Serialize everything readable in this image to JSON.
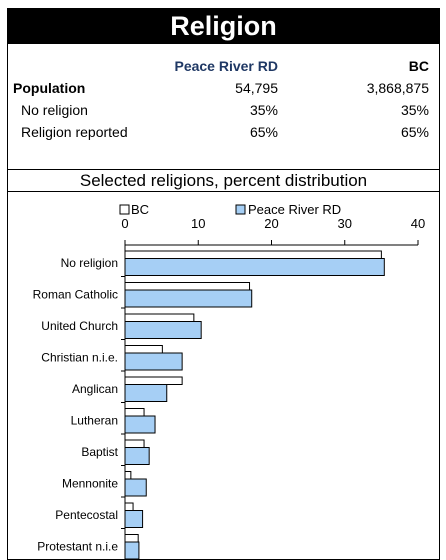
{
  "title": "Religion",
  "stats": {
    "col_region": "Peace River RD",
    "col_bc": "BC",
    "rows": [
      {
        "label": "Population",
        "region": "54,795",
        "bc": "3,868,875",
        "bold": true
      },
      {
        "label": "No religion",
        "region": "35%",
        "bc": "35%",
        "bold": false
      },
      {
        "label": "Religion reported",
        "region": "65%",
        "bc": "65%",
        "bold": false
      }
    ]
  },
  "colors": {
    "region_fill": "#a6cff5",
    "region_header": "#1f3864",
    "bc_fill": "#ffffff"
  },
  "chart_data": {
    "type": "bar",
    "orientation": "horizontal",
    "title": "Selected religions, percent distribution",
    "categories": [
      "No religion",
      "Roman Catholic",
      "United Church",
      "Christian n.i.e.",
      "Anglican",
      "Lutheran",
      "Baptist",
      "Mennonite",
      "Pentecostal",
      "Protestant n.i.e"
    ],
    "series": [
      {
        "name": "BC",
        "values": [
          35.0,
          17.0,
          9.4,
          5.1,
          7.8,
          2.6,
          2.6,
          0.8,
          1.1,
          1.8
        ]
      },
      {
        "name": "Peace River RD",
        "values": [
          35.4,
          17.3,
          10.4,
          7.8,
          5.7,
          4.1,
          3.3,
          2.9,
          2.4,
          1.9
        ]
      }
    ],
    "xlim": [
      0,
      40
    ],
    "ticks": [
      0,
      10,
      20,
      30,
      40
    ],
    "legend_position": "top"
  }
}
